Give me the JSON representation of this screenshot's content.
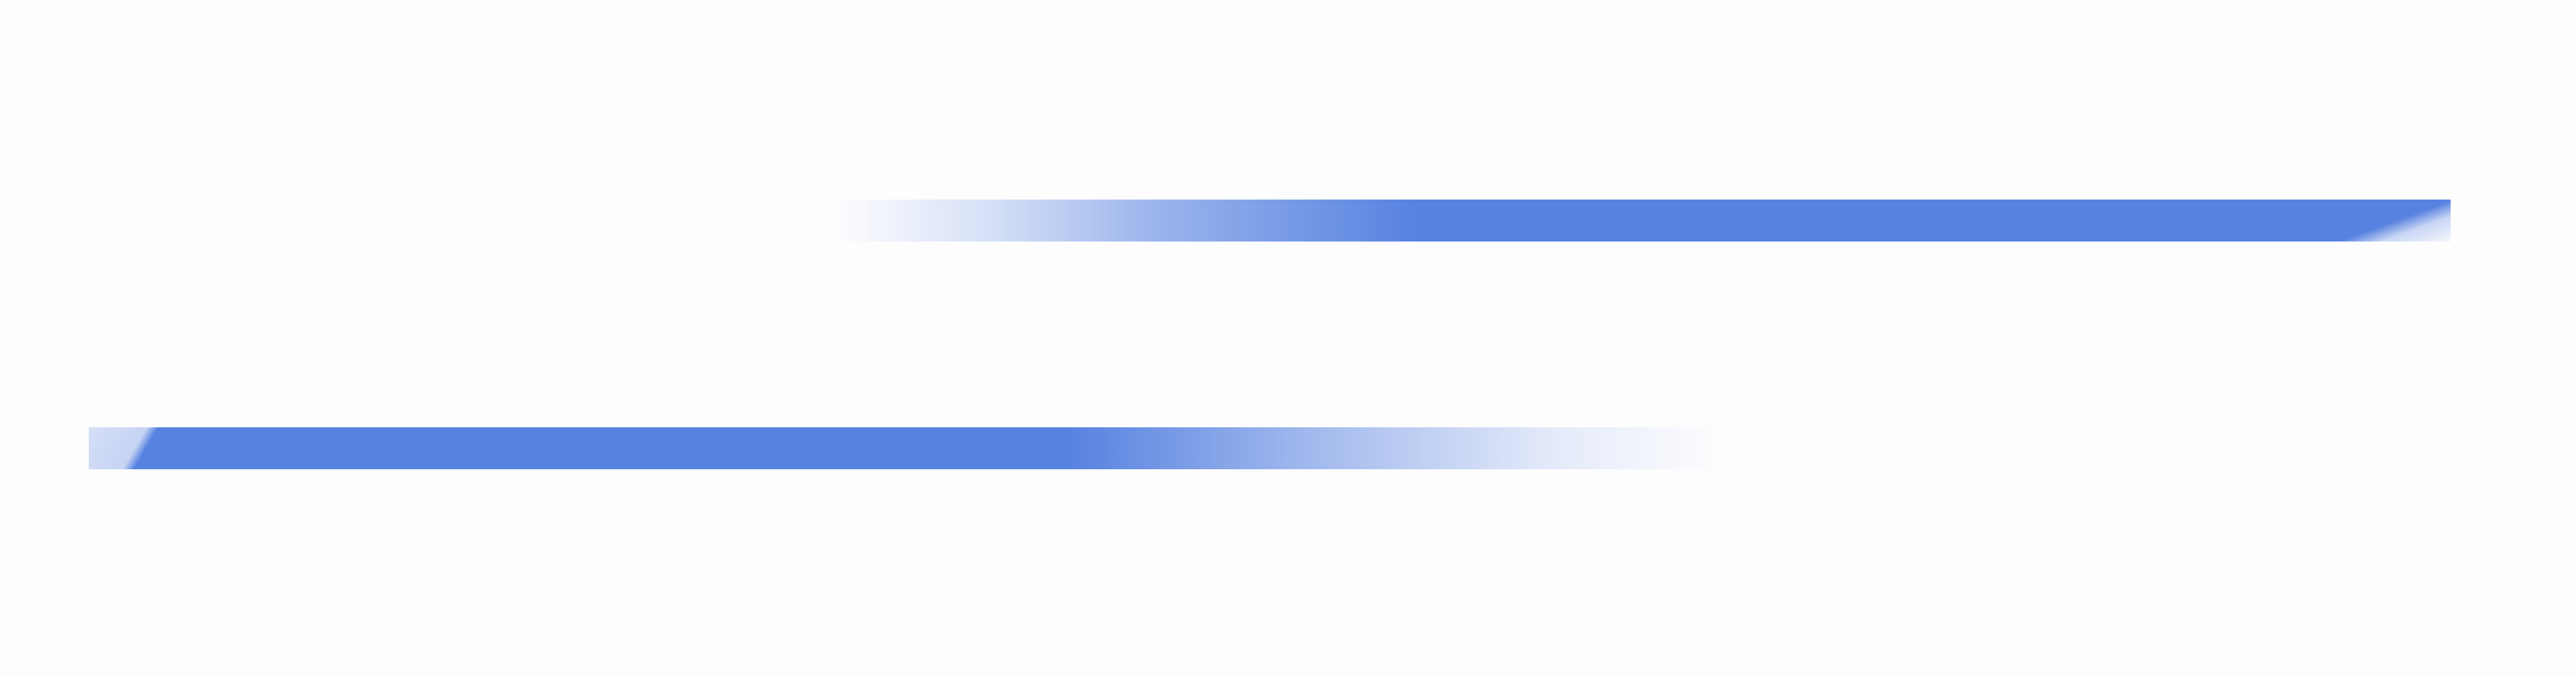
{
  "colors": {
    "background": "#fdfdfe",
    "stripe": "#5782e0"
  },
  "elements": [
    "upper-stripe",
    "lower-stripe"
  ]
}
